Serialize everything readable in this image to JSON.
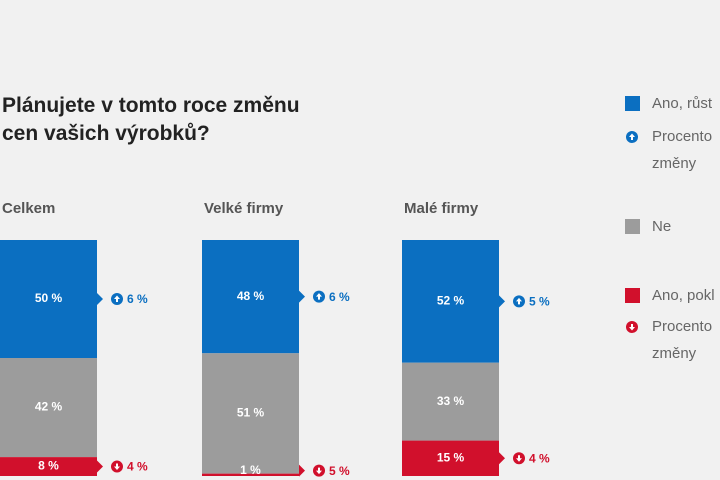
{
  "chart_data": {
    "type": "stacked-bar",
    "title": "Plánujete v tomto roce změnu cen vašich výrobků?",
    "categories": [
      "Celkem",
      "Velké firmy",
      "Malé firmy"
    ],
    "series": [
      {
        "name": "Ano, růst",
        "color": "#0b6fc1",
        "values": [
          50,
          48,
          52
        ],
        "value_labels": [
          "50 %",
          "48 %",
          "52 %"
        ]
      },
      {
        "name": "Ne",
        "color": "#9c9c9c",
        "values": [
          42,
          51,
          33
        ],
        "value_labels": [
          "42 %",
          "51 %",
          "33 %"
        ]
      },
      {
        "name": "Ano, pokl",
        "color": "#d1102c",
        "values": [
          8,
          1,
          15
        ],
        "value_labels": [
          "8 %",
          "1 %",
          "15 %"
        ]
      }
    ],
    "changes": [
      {
        "name": "Procento změny",
        "color": "#0b6fc1",
        "direction": "up",
        "values": [
          6,
          6,
          5
        ],
        "value_labels": [
          "6 %",
          "6 %",
          "5 %"
        ]
      },
      {
        "name": "Procento změny",
        "color": "#d1102c",
        "direction": "down",
        "values": [
          4,
          5,
          4
        ],
        "value_labels": [
          "4 %",
          "5 %",
          "4 %"
        ]
      }
    ],
    "ylim": [
      0,
      100
    ]
  }
}
